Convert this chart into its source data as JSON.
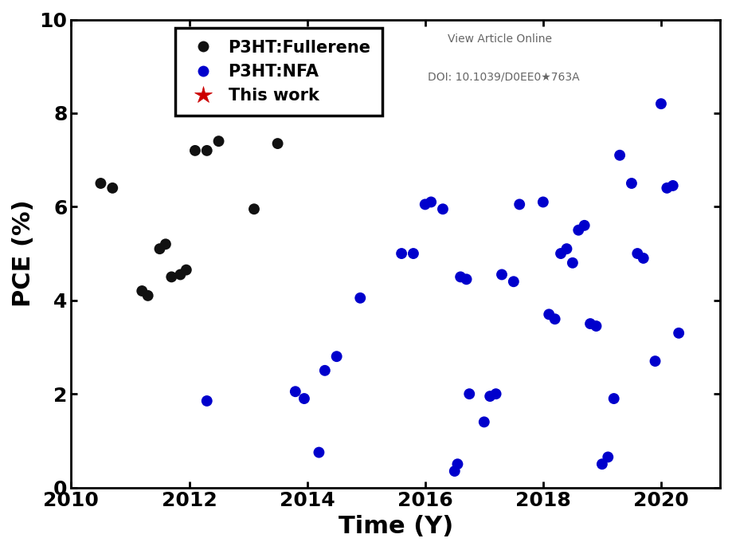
{
  "fullerene_x": [
    2010.5,
    2010.7,
    2011.2,
    2011.3,
    2011.5,
    2011.6,
    2011.7,
    2011.85,
    2011.95,
    2012.1,
    2012.3,
    2012.5,
    2013.1,
    2013.5
  ],
  "fullerene_y": [
    6.5,
    6.4,
    4.2,
    4.1,
    5.1,
    5.2,
    4.5,
    4.55,
    4.65,
    7.2,
    7.2,
    7.4,
    5.95,
    7.35
  ],
  "nfa_x": [
    2012.3,
    2013.8,
    2013.95,
    2014.2,
    2014.3,
    2014.5,
    2014.9,
    2015.6,
    2015.8,
    2016.0,
    2016.1,
    2016.3,
    2016.5,
    2016.55,
    2016.6,
    2016.7,
    2016.75,
    2017.0,
    2017.1,
    2017.2,
    2017.3,
    2017.5,
    2017.6,
    2018.0,
    2018.1,
    2018.2,
    2018.3,
    2018.4,
    2018.5,
    2018.6,
    2018.7,
    2018.8,
    2018.9,
    2019.0,
    2019.1,
    2019.2,
    2019.3,
    2019.5,
    2019.6,
    2019.7,
    2019.9,
    2020.0,
    2020.1,
    2020.2,
    2020.3
  ],
  "nfa_y": [
    1.85,
    2.05,
    1.9,
    0.75,
    2.5,
    2.8,
    4.05,
    5.0,
    5.0,
    6.05,
    6.1,
    5.95,
    0.35,
    0.5,
    4.5,
    4.45,
    2.0,
    1.4,
    1.95,
    2.0,
    4.55,
    4.4,
    6.05,
    6.1,
    3.7,
    3.6,
    5.0,
    5.1,
    4.8,
    5.5,
    5.6,
    3.5,
    3.45,
    0.5,
    0.65,
    1.9,
    7.1,
    6.5,
    5.0,
    4.9,
    2.7,
    8.2,
    6.4,
    6.45,
    3.3
  ],
  "xlim": [
    2010,
    2021
  ],
  "ylim": [
    0,
    10
  ],
  "xticks": [
    2010,
    2012,
    2014,
    2016,
    2018,
    2020
  ],
  "yticks": [
    0,
    2,
    4,
    6,
    8,
    10
  ],
  "xlabel": "Time (Y)",
  "ylabel": "PCE (%)",
  "fullerene_color": "#111111",
  "nfa_color": "#0000cc",
  "this_work_color": "#cc0000",
  "marker_size": 100,
  "legend_labels": [
    "P3HT:Fullerene",
    "P3HT:NFA",
    "This work"
  ],
  "annotation_text1": "View Article Online",
  "annotation_text2": "DOI: 10.1039/D0EE0★763A",
  "annotation_color": "#666666",
  "tick_fontsize": 18,
  "label_fontsize": 22,
  "legend_fontsize": 15
}
